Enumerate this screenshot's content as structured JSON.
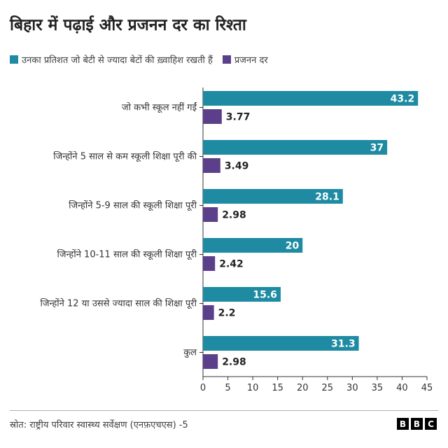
{
  "title": "बिहार में पढ़ाई और प्रजनन दर का रिश्ता",
  "legend": [
    {
      "label": "उनका प्रतिशत जो बेटी से ज्यादा बेटों की ख़्वाहिश रखती हैं",
      "color": "#1e8ba3"
    },
    {
      "label": "प्रजनन दर",
      "color": "#5b3f8a"
    }
  ],
  "chart_data": {
    "type": "bar",
    "orientation": "horizontal",
    "categories": [
      "जो कभी स्कूल नहीं गईं",
      "जिन्होंने 5 साल से कम स्कूली शिक्षा  पूरी की",
      "जिन्होंने 5-9 साल की स्कूली शिक्षा पूरी",
      "जिन्होंने 10-11 साल की स्कूली शिक्षा पूरी",
      "जिन्होंने 12 या उससे ज्यादा साल की शिक्षा पूरी",
      "कुल"
    ],
    "series": [
      {
        "name": "उनका प्रतिशत जो बेटी से ज्यादा बेटों की ख़्वाहिश रखती हैं",
        "values": [
          43.2,
          37,
          28.1,
          20,
          15.6,
          31.3
        ],
        "labels": [
          "43.2",
          "37",
          "28.1",
          "20",
          "15.6",
          "31.3"
        ],
        "color": "#1e8ba3"
      },
      {
        "name": "प्रजनन दर",
        "values": [
          3.77,
          3.49,
          2.98,
          2.42,
          2.2,
          2.98
        ],
        "labels": [
          "3.77",
          "3.49",
          "2.98",
          "2.42",
          "2.2",
          "2.98"
        ],
        "color": "#5b3f8a"
      }
    ],
    "xlim": [
      0,
      45
    ],
    "xticks": [
      "0",
      "5",
      "10",
      "15",
      "20",
      "25",
      "30",
      "35",
      "40",
      "45"
    ],
    "grid": false
  },
  "source": "स्रोत: राष्ट्रीय परिवार स्वास्थ्य सर्वेक्षण (एनफ़एचएस) -5",
  "logo": [
    "B",
    "B",
    "C"
  ]
}
